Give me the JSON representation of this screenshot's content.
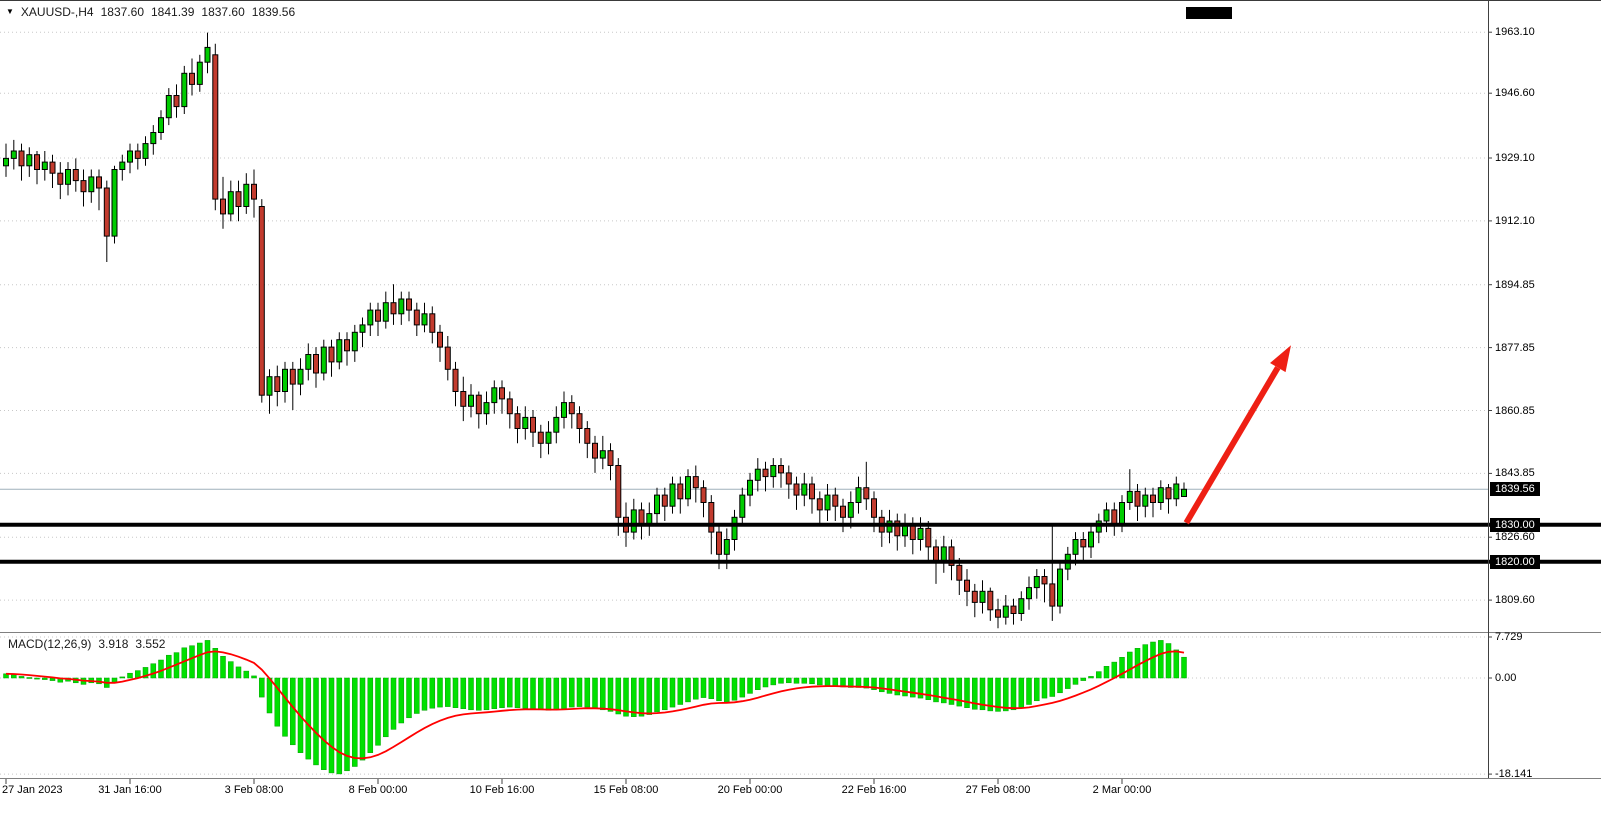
{
  "header": {
    "symbol_period": "XAUUSD-,H4",
    "open": "1837.60",
    "high": "1841.39",
    "low": "1837.60",
    "close": "1839.56"
  },
  "icons": {
    "symbol_marker": "▼"
  },
  "colors": {
    "bull": "#00cc00",
    "bear": "#c23b2e",
    "wick": "#000000",
    "candle_border": "#000000",
    "grid": "#c8c8c8",
    "hline": "#000000",
    "current_line": "#9fb0bc",
    "arrow": "#ee1f14",
    "macd_bar": "#00e000",
    "macd_bar_border": "#00a000",
    "macd_signal": "#ff0000",
    "axis_box_bg": "#000000",
    "axis_box_fg": "#ffffff"
  },
  "chart_data": {
    "type": "candlestick",
    "symbol": "XAUUSD-",
    "timeframe": "H4",
    "title": "XAUUSD-,H4 1837.60 1841.39 1837.60 1839.56",
    "last_bar": {
      "open": 1837.6,
      "high": 1841.39,
      "low": 1837.6,
      "close": 1839.56
    },
    "price_axis": {
      "ticks": [
        {
          "v": 1963.1,
          "label": "1963.10"
        },
        {
          "v": 1946.6,
          "label": "1946.60"
        },
        {
          "v": 1929.1,
          "label": "1929.10"
        },
        {
          "v": 1912.1,
          "label": "1912.10"
        },
        {
          "v": 1894.85,
          "label": "1894.85"
        },
        {
          "v": 1877.85,
          "label": "1877.85"
        },
        {
          "v": 1860.85,
          "label": "1860.85"
        },
        {
          "v": 1843.85,
          "label": "1843.85"
        },
        {
          "v": 1826.6,
          "label": "1826.60"
        },
        {
          "v": 1809.6,
          "label": "1809.60"
        }
      ],
      "levels": [
        {
          "v": 1839.56,
          "label": "1839.56",
          "kind": "current"
        },
        {
          "v": 1830.0,
          "label": "1830.00",
          "kind": "hline"
        },
        {
          "v": 1820.0,
          "label": "1820.00",
          "kind": "hline"
        }
      ],
      "range_visible": [
        1796,
        1972
      ]
    },
    "time_axis": {
      "ticks": [
        {
          "i": 0,
          "label": "27 Jan 2023"
        },
        {
          "i": 16,
          "label": "31 Jan 16:00"
        },
        {
          "i": 32,
          "label": "3 Feb 08:00"
        },
        {
          "i": 48,
          "label": "8 Feb 00:00"
        },
        {
          "i": 64,
          "label": "10 Feb 16:00"
        },
        {
          "i": 80,
          "label": "15 Feb 08:00"
        },
        {
          "i": 96,
          "label": "20 Feb 00:00"
        },
        {
          "i": 112,
          "label": "22 Feb 16:00"
        },
        {
          "i": 128,
          "label": "27 Feb 08:00"
        },
        {
          "i": 144,
          "label": "2 Mar 00:00"
        }
      ]
    },
    "candles": [
      [
        1927,
        1933,
        1924,
        1929
      ],
      [
        1929,
        1934,
        1926,
        1931
      ],
      [
        1931,
        1933,
        1923,
        1927
      ],
      [
        1927,
        1932,
        1924,
        1930
      ],
      [
        1930,
        1931,
        1922,
        1926
      ],
      [
        1926,
        1931,
        1923,
        1928
      ],
      [
        1928,
        1930,
        1921,
        1925
      ],
      [
        1925,
        1928,
        1918,
        1922
      ],
      [
        1922,
        1928,
        1919,
        1926
      ],
      [
        1926,
        1929,
        1920,
        1923
      ],
      [
        1923,
        1926,
        1916,
        1920
      ],
      [
        1920,
        1926,
        1917,
        1924
      ],
      [
        1924,
        1926,
        1915,
        1921
      ],
      [
        1921,
        1923,
        1901,
        1908
      ],
      [
        1908,
        1927,
        1906,
        1926
      ],
      [
        1926,
        1930,
        1923,
        1928
      ],
      [
        1928,
        1933,
        1925,
        1931
      ],
      [
        1931,
        1933,
        1926,
        1929
      ],
      [
        1929,
        1935,
        1927,
        1933
      ],
      [
        1933,
        1938,
        1930,
        1936
      ],
      [
        1936,
        1942,
        1934,
        1940
      ],
      [
        1940,
        1948,
        1938,
        1946
      ],
      [
        1946,
        1949,
        1940,
        1943
      ],
      [
        1943,
        1954,
        1941,
        1952
      ],
      [
        1952,
        1956,
        1946,
        1949
      ],
      [
        1949,
        1957,
        1947,
        1955
      ],
      [
        1955,
        1963,
        1952,
        1959
      ],
      [
        1957,
        1960,
        1915,
        1918
      ],
      [
        1918,
        1924,
        1910,
        1914
      ],
      [
        1914,
        1923,
        1912,
        1920
      ],
      [
        1920,
        1923,
        1912,
        1916
      ],
      [
        1916,
        1925,
        1914,
        1922
      ],
      [
        1922,
        1926,
        1913,
        1918
      ],
      [
        1916,
        1918,
        1863,
        1865
      ],
      [
        1865,
        1872,
        1860,
        1870
      ],
      [
        1870,
        1873,
        1862,
        1866
      ],
      [
        1866,
        1874,
        1863,
        1872
      ],
      [
        1872,
        1874,
        1861,
        1868
      ],
      [
        1868,
        1875,
        1865,
        1872
      ],
      [
        1872,
        1879,
        1869,
        1876
      ],
      [
        1876,
        1878,
        1867,
        1871
      ],
      [
        1871,
        1880,
        1869,
        1878
      ],
      [
        1878,
        1880,
        1870,
        1874
      ],
      [
        1874,
        1882,
        1872,
        1880
      ],
      [
        1880,
        1882,
        1873,
        1877
      ],
      [
        1877,
        1884,
        1874,
        1882
      ],
      [
        1882,
        1886,
        1878,
        1884
      ],
      [
        1884,
        1890,
        1881,
        1888
      ],
      [
        1888,
        1890,
        1881,
        1885
      ],
      [
        1885,
        1893,
        1883,
        1890
      ],
      [
        1890,
        1895,
        1884,
        1887
      ],
      [
        1887,
        1893,
        1884,
        1891
      ],
      [
        1891,
        1893,
        1885,
        1888
      ],
      [
        1888,
        1890,
        1881,
        1884
      ],
      [
        1884,
        1890,
        1882,
        1887
      ],
      [
        1887,
        1889,
        1879,
        1882
      ],
      [
        1882,
        1884,
        1874,
        1878
      ],
      [
        1878,
        1881,
        1869,
        1872
      ],
      [
        1872,
        1874,
        1862,
        1866
      ],
      [
        1866,
        1870,
        1858,
        1862
      ],
      [
        1862,
        1868,
        1859,
        1865
      ],
      [
        1865,
        1866,
        1856,
        1860
      ],
      [
        1860,
        1866,
        1857,
        1863
      ],
      [
        1863,
        1869,
        1860,
        1867
      ],
      [
        1867,
        1869,
        1860,
        1864
      ],
      [
        1864,
        1866,
        1856,
        1860
      ],
      [
        1860,
        1862,
        1852,
        1856
      ],
      [
        1856,
        1862,
        1853,
        1859
      ],
      [
        1859,
        1861,
        1851,
        1855
      ],
      [
        1855,
        1857,
        1848,
        1852
      ],
      [
        1852,
        1858,
        1849,
        1855
      ],
      [
        1855,
        1862,
        1852,
        1859
      ],
      [
        1859,
        1866,
        1856,
        1863
      ],
      [
        1863,
        1865,
        1856,
        1860
      ],
      [
        1860,
        1862,
        1852,
        1856
      ],
      [
        1856,
        1858,
        1848,
        1852
      ],
      [
        1852,
        1854,
        1844,
        1848
      ],
      [
        1848,
        1854,
        1845,
        1850
      ],
      [
        1850,
        1852,
        1842,
        1846
      ],
      [
        1846,
        1848,
        1827,
        1832
      ],
      [
        1832,
        1836,
        1824,
        1828
      ],
      [
        1828,
        1837,
        1826,
        1834
      ],
      [
        1834,
        1836,
        1826,
        1830
      ],
      [
        1830,
        1836,
        1827,
        1833
      ],
      [
        1833,
        1840,
        1830,
        1838
      ],
      [
        1838,
        1840,
        1831,
        1835
      ],
      [
        1835,
        1843,
        1833,
        1841
      ],
      [
        1841,
        1843,
        1833,
        1837
      ],
      [
        1837,
        1845,
        1835,
        1843
      ],
      [
        1843,
        1846,
        1836,
        1840
      ],
      [
        1840,
        1842,
        1832,
        1836
      ],
      [
        1836,
        1838,
        1822,
        1828
      ],
      [
        1828,
        1830,
        1818,
        1822
      ],
      [
        1822,
        1829,
        1818,
        1826
      ],
      [
        1826,
        1834,
        1823,
        1832
      ],
      [
        1832,
        1840,
        1830,
        1838
      ],
      [
        1838,
        1844,
        1835,
        1842
      ],
      [
        1842,
        1848,
        1839,
        1845
      ],
      [
        1845,
        1847,
        1839,
        1843
      ],
      [
        1843,
        1848,
        1840,
        1846
      ],
      [
        1846,
        1848,
        1840,
        1844
      ],
      [
        1844,
        1846,
        1837,
        1841
      ],
      [
        1841,
        1843,
        1834,
        1838
      ],
      [
        1838,
        1844,
        1835,
        1841
      ],
      [
        1841,
        1843,
        1833,
        1837
      ],
      [
        1837,
        1839,
        1830,
        1834
      ],
      [
        1834,
        1841,
        1831,
        1838
      ],
      [
        1838,
        1840,
        1831,
        1835
      ],
      [
        1835,
        1837,
        1828,
        1832
      ],
      [
        1832,
        1839,
        1829,
        1836
      ],
      [
        1836,
        1843,
        1833,
        1840
      ],
      [
        1840,
        1847,
        1834,
        1837
      ],
      [
        1837,
        1839,
        1828,
        1832
      ],
      [
        1832,
        1834,
        1824,
        1828
      ],
      [
        1828,
        1834,
        1825,
        1831
      ],
      [
        1831,
        1833,
        1823,
        1827
      ],
      [
        1827,
        1833,
        1824,
        1830
      ],
      [
        1830,
        1832,
        1822,
        1826
      ],
      [
        1826,
        1832,
        1823,
        1829
      ],
      [
        1829,
        1831,
        1820,
        1824
      ],
      [
        1824,
        1826,
        1814,
        1820
      ],
      [
        1820,
        1827,
        1817,
        1824
      ],
      [
        1824,
        1826,
        1815,
        1819
      ],
      [
        1819,
        1821,
        1811,
        1815
      ],
      [
        1815,
        1818,
        1808,
        1812
      ],
      [
        1812,
        1814,
        1805,
        1809
      ],
      [
        1809,
        1815,
        1806,
        1812
      ],
      [
        1812,
        1813,
        1804,
        1807
      ],
      [
        1807,
        1810,
        1802,
        1805
      ],
      [
        1805,
        1811,
        1803,
        1808
      ],
      [
        1808,
        1810,
        1803,
        1806
      ],
      [
        1806,
        1812,
        1804,
        1810
      ],
      [
        1810,
        1816,
        1807,
        1813
      ],
      [
        1813,
        1818,
        1810,
        1816
      ],
      [
        1816,
        1818,
        1809,
        1814
      ],
      [
        1814,
        1830,
        1804,
        1808
      ],
      [
        1808,
        1820,
        1806,
        1818
      ],
      [
        1818,
        1824,
        1815,
        1822
      ],
      [
        1822,
        1828,
        1819,
        1826
      ],
      [
        1826,
        1828,
        1820,
        1824
      ],
      [
        1824,
        1830,
        1821,
        1828
      ],
      [
        1828,
        1833,
        1825,
        1831
      ],
      [
        1831,
        1836,
        1828,
        1834
      ],
      [
        1834,
        1836,
        1827,
        1830
      ],
      [
        1830,
        1838,
        1828,
        1836
      ],
      [
        1836,
        1845,
        1834,
        1839
      ],
      [
        1839,
        1841,
        1831,
        1835
      ],
      [
        1835,
        1840,
        1832,
        1838
      ],
      [
        1838,
        1840,
        1832,
        1836
      ],
      [
        1836,
        1842,
        1834,
        1840
      ],
      [
        1840,
        1841,
        1833,
        1837
      ],
      [
        1837,
        1843,
        1835,
        1841
      ],
      [
        1837.6,
        1841.39,
        1837.6,
        1839.56
      ]
    ],
    "macd": {
      "params_label": "MACD(12,26,9)",
      "value": "3.918",
      "signal": "3.552",
      "axis": [
        {
          "v": 7.729,
          "label": "7.729"
        },
        {
          "v": 0,
          "label": "0.00"
        },
        {
          "v": -18.141,
          "label": "-18.141"
        }
      ],
      "hist": [
        0.8,
        0.6,
        0.3,
        0.1,
        -0.2,
        -0.3,
        -0.5,
        -0.8,
        -0.6,
        -0.9,
        -1.2,
        -0.9,
        -1.1,
        -1.8,
        -0.9,
        0.2,
        0.9,
        1.4,
        2.0,
        2.7,
        3.4,
        4.3,
        4.8,
        5.7,
        6.1,
        6.6,
        7.1,
        5.6,
        4.1,
        3.1,
        2.1,
        1.3,
        0.4,
        -3.6,
        -6.6,
        -9.1,
        -11.0,
        -12.6,
        -14.1,
        -15.3,
        -16.4,
        -17.3,
        -17.9,
        -18.1,
        -17.5,
        -16.7,
        -15.5,
        -14.1,
        -12.7,
        -11.1,
        -9.7,
        -8.5,
        -7.5,
        -6.7,
        -6.1,
        -5.7,
        -5.5,
        -5.4,
        -5.6,
        -5.8,
        -6.0,
        -6.1,
        -6.0,
        -5.8,
        -5.6,
        -5.5,
        -5.6,
        -5.7,
        -5.9,
        -6.0,
        -6.1,
        -6.0,
        -5.8,
        -5.5,
        -5.4,
        -5.5,
        -5.8,
        -6.0,
        -6.3,
        -6.8,
        -7.2,
        -7.3,
        -7.2,
        -6.9,
        -6.4,
        -6.0,
        -5.5,
        -5.0,
        -4.5,
        -4.0,
        -3.7,
        -3.9,
        -4.3,
        -4.5,
        -4.2,
        -3.6,
        -2.9,
        -2.2,
        -1.7,
        -1.3,
        -1.0,
        -0.9,
        -1.0,
        -1.0,
        -1.1,
        -1.3,
        -1.4,
        -1.5,
        -1.7,
        -1.8,
        -1.8,
        -1.9,
        -2.2,
        -2.6,
        -2.9,
        -3.2,
        -3.4,
        -3.6,
        -3.8,
        -4.1,
        -4.5,
        -4.7,
        -5.0,
        -5.3,
        -5.6,
        -5.9,
        -6.0,
        -6.2,
        -6.3,
        -6.2,
        -6.0,
        -5.6,
        -5.0,
        -4.3,
        -3.8,
        -3.5,
        -2.8,
        -2.0,
        -1.2,
        -0.5,
        0.3,
        1.2,
        2.2,
        3.0,
        3.9,
        4.9,
        5.6,
        6.3,
        6.8,
        7.1,
        6.5,
        5.3,
        3.918
      ]
    },
    "arrow": {
      "i1": 152.3,
      "p1": 1830.5,
      "i2": 165.8,
      "p2": 1878.5
    }
  }
}
